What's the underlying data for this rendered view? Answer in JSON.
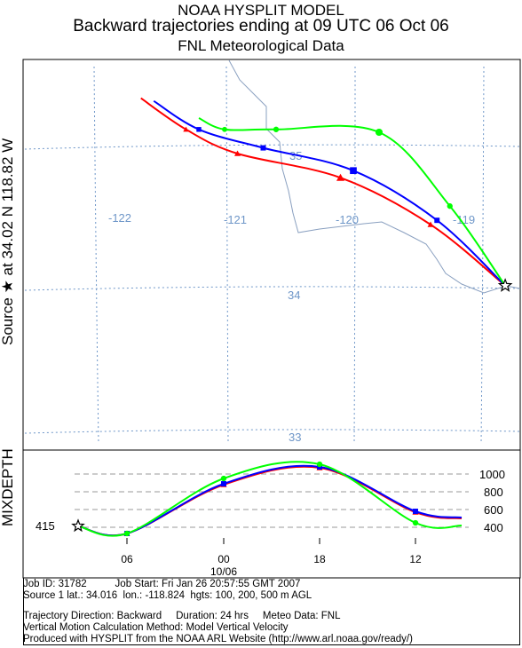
{
  "titles": {
    "line1": "NOAA HYSPLIT MODEL",
    "line2": "Backward trajectories ending at 09 UTC 06 Oct 06",
    "line3": "FNL  Meteorological Data"
  },
  "source_label": "Source ★ at  34.02 N  118.82 W",
  "mixdepth_label": "MIXDEPTH",
  "colors": {
    "red": "#ff0000",
    "blue": "#0000ff",
    "green": "#00ff00",
    "grid": "#6e96c8",
    "coast": "#8aa0c0"
  },
  "chart_data": [
    {
      "type": "line",
      "name": "trajectory-map",
      "lon_labels": [
        "-122",
        "-121",
        "-120",
        "-119"
      ],
      "lat_labels": [
        "35",
        "34",
        "33"
      ],
      "series": [
        {
          "name": "100 m AGL",
          "color": "#ff0000",
          "points": [
            [
              -120.9,
              34.95
            ],
            [
              -120.1,
              34.78
            ],
            [
              -119.4,
              34.45
            ],
            [
              -118.82,
              34.02
            ]
          ]
        },
        {
          "name": "200 m AGL",
          "color": "#0000ff",
          "points": [
            [
              -120.7,
              34.99
            ],
            [
              -120.0,
              34.83
            ],
            [
              -119.35,
              34.48
            ],
            [
              -118.82,
              34.02
            ]
          ]
        },
        {
          "name": "500 m AGL",
          "color": "#00ff00",
          "points": [
            [
              -120.6,
              35.12
            ],
            [
              -119.8,
              35.1
            ],
            [
              -119.25,
              34.58
            ],
            [
              -118.82,
              34.02
            ]
          ]
        }
      ]
    },
    {
      "type": "line",
      "name": "mixing-depth",
      "x_labels": [
        "06",
        "00",
        "18",
        "12"
      ],
      "date_label": "10/06",
      "y_labels": [
        "1000",
        "800",
        "600",
        "400"
      ],
      "start_value": "415",
      "series": [
        {
          "name": "red",
          "color": "#ff0000",
          "values": [
            415,
            330,
            880,
            1070,
            570,
            500
          ]
        },
        {
          "name": "blue",
          "color": "#0000ff",
          "values": [
            415,
            330,
            890,
            1080,
            580,
            510
          ]
        },
        {
          "name": "green",
          "color": "#00ff00",
          "values": [
            415,
            330,
            950,
            1110,
            450,
            420
          ]
        }
      ]
    }
  ],
  "footer": {
    "line1": "Job ID: 31782          Job Start: Fri Jan 26 20:57:55 GMT 2007",
    "line2": "Source 1 lat.: 34.016  lon.: -118.824  hgts: 100, 200, 500 m AGL",
    "line3": "Trajectory Direction: Backward     Duration: 24 hrs     Meteo Data: FNL",
    "line4": "Vertical Motion Calculation Method: Model Vertical Velocity",
    "line5": "Produced with HYSPLIT from the NOAA ARL Website (http://www.arl.noaa.gov/ready/)"
  }
}
